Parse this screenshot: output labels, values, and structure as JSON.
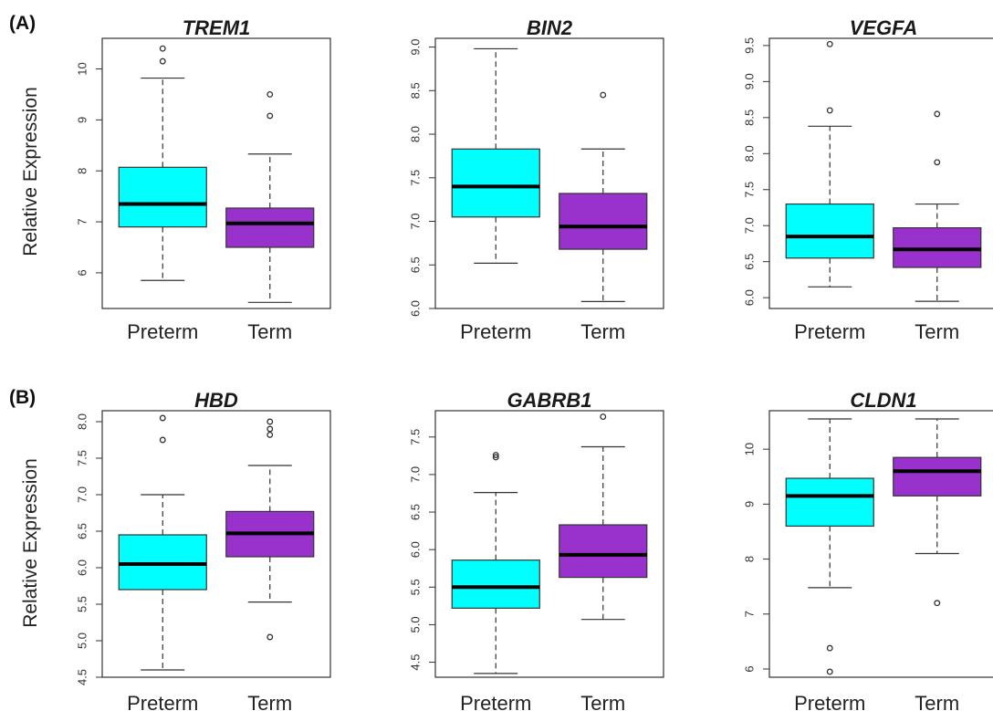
{
  "panel_labels": [
    "(A)",
    "(B)"
  ],
  "ylabel": "Relative Expression",
  "colors": {
    "Preterm": "#00ffff",
    "Term": "#9932cc"
  },
  "chart_data": [
    {
      "type": "boxplot",
      "row": 0,
      "col": 0,
      "title": "TREM1",
      "ylim": [
        5.3,
        10.6
      ],
      "yticks": [
        6,
        7,
        8,
        9,
        10
      ],
      "tick_labels": [
        "6",
        "7",
        "8",
        "9",
        "10"
      ],
      "categories": [
        "Preterm",
        "Term"
      ],
      "boxes": [
        {
          "name": "Preterm",
          "whisker_low": 5.85,
          "q1": 6.9,
          "median": 7.35,
          "q3": 8.07,
          "whisker_high": 9.82,
          "outliers": [
            10.15,
            10.4
          ]
        },
        {
          "name": "Term",
          "whisker_low": 5.42,
          "q1": 6.5,
          "median": 6.97,
          "q3": 7.27,
          "whisker_high": 8.33,
          "outliers": [
            9.08,
            9.5
          ]
        }
      ]
    },
    {
      "type": "boxplot",
      "row": 0,
      "col": 1,
      "title": "BIN2",
      "ylim": [
        6.0,
        9.1
      ],
      "yticks": [
        6.0,
        6.5,
        7.0,
        7.5,
        8.0,
        8.5,
        9.0
      ],
      "tick_labels": [
        "6.0",
        "6.5",
        "7.0",
        "7.5",
        "8.0",
        "8.5",
        "9.0"
      ],
      "categories": [
        "Preterm",
        "Term"
      ],
      "boxes": [
        {
          "name": "Preterm",
          "whisker_low": 6.52,
          "q1": 7.05,
          "median": 7.4,
          "q3": 7.83,
          "whisker_high": 8.98,
          "outliers": []
        },
        {
          "name": "Term",
          "whisker_low": 6.08,
          "q1": 6.68,
          "median": 6.94,
          "q3": 7.32,
          "whisker_high": 7.83,
          "outliers": [
            8.45
          ]
        }
      ]
    },
    {
      "type": "boxplot",
      "row": 0,
      "col": 2,
      "title": "VEGFA",
      "ylim": [
        5.85,
        9.6
      ],
      "yticks": [
        6.0,
        6.5,
        7.0,
        7.5,
        8.0,
        8.5,
        9.0,
        9.5
      ],
      "tick_labels": [
        "6.0",
        "6.5",
        "7.0",
        "7.5",
        "8.0",
        "8.5",
        "9.0",
        "9.5"
      ],
      "categories": [
        "Preterm",
        "Term"
      ],
      "boxes": [
        {
          "name": "Preterm",
          "whisker_low": 6.15,
          "q1": 6.55,
          "median": 6.85,
          "q3": 7.3,
          "whisker_high": 8.38,
          "outliers": [
            8.6,
            9.52
          ]
        },
        {
          "name": "Term",
          "whisker_low": 5.95,
          "q1": 6.42,
          "median": 6.67,
          "q3": 6.97,
          "whisker_high": 7.3,
          "outliers": [
            7.88,
            8.55
          ]
        }
      ]
    },
    {
      "type": "boxplot",
      "row": 1,
      "col": 0,
      "title": "HBD",
      "ylim": [
        4.5,
        8.15
      ],
      "yticks": [
        4.5,
        5.0,
        5.5,
        6.0,
        6.5,
        7.0,
        7.5,
        8.0
      ],
      "tick_labels": [
        "4.5",
        "5.0",
        "5.5",
        "6.0",
        "6.5",
        "7.0",
        "7.5",
        "8.0"
      ],
      "categories": [
        "Preterm",
        "Term"
      ],
      "boxes": [
        {
          "name": "Preterm",
          "whisker_low": 4.6,
          "q1": 5.7,
          "median": 6.05,
          "q3": 6.45,
          "whisker_high": 7.0,
          "outliers": [
            7.75,
            8.05
          ]
        },
        {
          "name": "Term",
          "whisker_low": 5.53,
          "q1": 6.15,
          "median": 6.47,
          "q3": 6.77,
          "whisker_high": 7.4,
          "outliers": [
            5.05,
            7.82,
            7.9,
            8.0
          ]
        }
      ]
    },
    {
      "type": "boxplot",
      "row": 1,
      "col": 1,
      "title": "GABRB1",
      "ylim": [
        4.3,
        7.85
      ],
      "yticks": [
        4.5,
        5.0,
        5.5,
        6.0,
        6.5,
        7.0,
        7.5
      ],
      "tick_labels": [
        "4.5",
        "5.0",
        "5.5",
        "6.0",
        "6.5",
        "7.0",
        "7.5"
      ],
      "categories": [
        "Preterm",
        "Term"
      ],
      "boxes": [
        {
          "name": "Preterm",
          "whisker_low": 4.35,
          "q1": 5.22,
          "median": 5.5,
          "q3": 5.86,
          "whisker_high": 6.76,
          "outliers": [
            7.23,
            7.26
          ]
        },
        {
          "name": "Term",
          "whisker_low": 5.07,
          "q1": 5.63,
          "median": 5.93,
          "q3": 6.33,
          "whisker_high": 7.37,
          "outliers": [
            7.77
          ]
        }
      ]
    },
    {
      "type": "boxplot",
      "row": 1,
      "col": 2,
      "title": "CLDN1",
      "ylim": [
        5.85,
        10.7
      ],
      "yticks": [
        6,
        7,
        8,
        9,
        10
      ],
      "tick_labels": [
        "6",
        "7",
        "8",
        "9",
        "10"
      ],
      "categories": [
        "Preterm",
        "Term"
      ],
      "boxes": [
        {
          "name": "Preterm",
          "whisker_low": 7.48,
          "q1": 8.6,
          "median": 9.15,
          "q3": 9.47,
          "whisker_high": 10.55,
          "outliers": [
            6.38,
            5.95
          ]
        },
        {
          "name": "Term",
          "whisker_low": 8.1,
          "q1": 9.15,
          "median": 9.6,
          "q3": 9.85,
          "whisker_high": 10.55,
          "outliers": [
            7.2
          ]
        }
      ]
    }
  ]
}
